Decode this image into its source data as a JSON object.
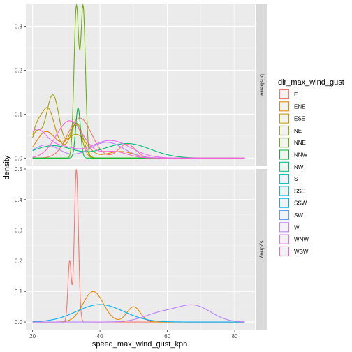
{
  "chart_data": {
    "type": "line",
    "subtype": "density",
    "xlabel": "speed_max_wind_gust_kph",
    "ylabel": "density",
    "xlim": [
      18,
      86
    ],
    "x_ticks": [
      20,
      40,
      60,
      80
    ],
    "grid": true,
    "legend": {
      "title": "dir_max_wind_gust",
      "placement": "right"
    },
    "panels": [
      {
        "strip_label": "brisbane",
        "ylim": [
          -0.017,
          0.35
        ],
        "y_ticks": [
          0.0,
          0.1,
          0.2,
          0.3
        ],
        "series": [
          {
            "name": "E",
            "color": "#F8766D",
            "components": [
              [
                34,
                3.5,
                0.8
              ],
              [
                48,
                2.5,
                0.2
              ]
            ]
          },
          {
            "name": "ENE",
            "color": "#E58700",
            "components": [
              [
                24,
                3.0,
                0.45
              ],
              [
                33,
                3.0,
                0.4
              ],
              [
                46,
                4.0,
                0.15
              ]
            ]
          },
          {
            "name": "ESE",
            "color": "#C99800",
            "components": [
              [
                24.5,
                2.0,
                0.55
              ],
              [
                21,
                1.5,
                0.2
              ],
              [
                33,
                1.6,
                0.3
              ],
              [
                29,
                2.0,
                0.1
              ]
            ]
          },
          {
            "name": "NE",
            "color": "#A3A500",
            "components": [
              [
                26,
                2.0,
                0.72
              ],
              [
                21,
                1.6,
                0.22
              ],
              [
                32,
                1.6,
                0.2
              ],
              [
                34,
                1.5,
                0.18
              ]
            ]
          },
          {
            "name": "NNE",
            "color": "#6BB100",
            "components": [
              [
                33,
                0.7,
                0.6
              ],
              [
                35,
                0.7,
                0.6
              ]
            ]
          },
          {
            "name": "NNW",
            "color": "#00BA38",
            "components": [
              [
                33.5,
                0.7,
                0.2
              ]
            ]
          },
          {
            "name": "NW",
            "color": "#00BF7D",
            "components": [
              [
                26,
                6.0,
                0.42
              ],
              [
                48,
                7.0,
                0.58
              ]
            ]
          },
          {
            "name": "S",
            "color": "#00C0AF",
            "components": []
          },
          {
            "name": "SSE",
            "color": "#00BCD8",
            "components": []
          },
          {
            "name": "SSW",
            "color": "#00B0F6",
            "components": []
          },
          {
            "name": "SW",
            "color": "#619CFF",
            "components": []
          },
          {
            "name": "W",
            "color": "#B983FF",
            "components": [
              [
                24,
                4.0,
                0.3
              ],
              [
                42,
                5.0,
                0.45
              ]
            ]
          },
          {
            "name": "WNW",
            "color": "#E76BF3",
            "components": [
              [
                21,
                3.0,
                0.45
              ],
              [
                28,
                4.0,
                0.25
              ],
              [
                43,
                6.0,
                0.6
              ]
            ]
          },
          {
            "name": "WSW",
            "color": "#FD61D1",
            "components": [
              [
                31,
                4.0,
                0.85
              ],
              [
                44,
                4.0,
                0.15
              ]
            ]
          }
        ]
      },
      {
        "strip_label": "sydney",
        "ylim": [
          -0.025,
          0.5
        ],
        "y_ticks": [
          0.0,
          0.1,
          0.2,
          0.3,
          0.4,
          0.5
        ],
        "series": [
          {
            "name": "E",
            "color": "#F8766D",
            "components": [
              [
                31,
                0.5,
                0.25
              ],
              [
                33,
                0.6,
                0.75
              ]
            ]
          },
          {
            "name": "ENE",
            "color": "#E58700",
            "components": [
              [
                38,
                3.0,
                0.75
              ],
              [
                50,
                2.0,
                0.25
              ]
            ]
          },
          {
            "name": "SSW",
            "color": "#00B0F6",
            "components": [
              [
                40,
                7.0,
                1.0
              ]
            ]
          },
          {
            "name": "W",
            "color": "#B983FF",
            "components": [
              [
                58,
                5.0,
                0.35
              ],
              [
                68,
                5.0,
                0.65
              ]
            ]
          }
        ]
      }
    ]
  }
}
